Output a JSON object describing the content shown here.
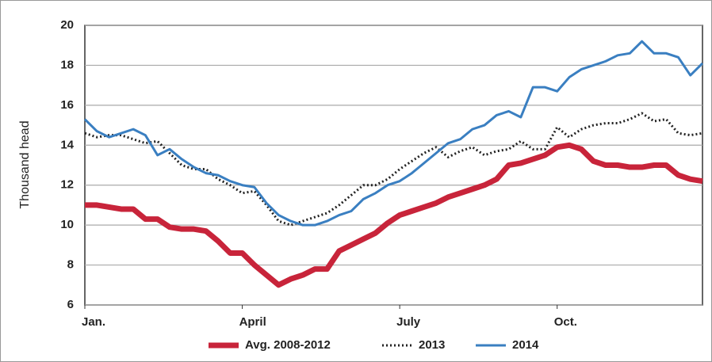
{
  "chart_data": {
    "type": "line",
    "y_label": "Thousand head",
    "x": [
      1,
      2,
      3,
      4,
      5,
      6,
      7,
      8,
      9,
      10,
      11,
      12,
      13,
      14,
      15,
      16,
      17,
      18,
      19,
      20,
      21,
      22,
      23,
      24,
      25,
      26,
      27,
      28,
      29,
      30,
      31,
      32,
      33,
      34,
      35,
      36,
      37,
      38,
      39,
      40,
      41,
      42,
      43,
      44,
      45,
      46,
      47,
      48,
      49,
      50,
      51,
      52
    ],
    "xlim": [
      1,
      52
    ],
    "xticks": [
      {
        "value": 1,
        "label": "Jan."
      },
      {
        "value": 14,
        "label": "April"
      },
      {
        "value": 27,
        "label": "July"
      },
      {
        "value": 40,
        "label": "Oct."
      }
    ],
    "ylim": [
      6,
      20
    ],
    "yticks": [
      6,
      8,
      10,
      12,
      14,
      16,
      18,
      20
    ],
    "grid": true,
    "legend": "bottom",
    "series": [
      {
        "name": "Avg. 2008-2012",
        "color": "#c8243a",
        "style": "thick",
        "values": [
          11.0,
          11.0,
          10.9,
          10.8,
          10.8,
          10.3,
          10.3,
          9.9,
          9.8,
          9.8,
          9.7,
          9.2,
          8.6,
          8.6,
          8.0,
          7.5,
          7.0,
          7.3,
          7.5,
          7.8,
          7.8,
          8.7,
          9.0,
          9.3,
          9.6,
          10.1,
          10.5,
          10.7,
          10.9,
          11.1,
          11.4,
          11.6,
          11.8,
          12.0,
          12.3,
          13.0,
          13.1,
          13.3,
          13.5,
          13.9,
          14.0,
          13.8,
          13.2,
          13.0,
          13.0,
          12.9,
          12.9,
          13.0,
          13.0,
          12.5,
          12.3,
          12.2
        ]
      },
      {
        "name": "2013",
        "color": "#222222",
        "style": "dotted",
        "values": [
          14.6,
          14.4,
          14.5,
          14.5,
          14.3,
          14.1,
          14.2,
          13.6,
          13.0,
          12.8,
          12.8,
          12.3,
          12.0,
          11.6,
          11.7,
          11.0,
          10.2,
          10.0,
          10.2,
          10.4,
          10.6,
          11.0,
          11.5,
          12.0,
          12.0,
          12.3,
          12.8,
          13.2,
          13.6,
          13.9,
          13.4,
          13.7,
          13.9,
          13.5,
          13.7,
          13.8,
          14.2,
          13.8,
          13.8,
          14.9,
          14.4,
          14.8,
          15.0,
          15.1,
          15.1,
          15.3,
          15.6,
          15.2,
          15.3,
          14.6,
          14.5,
          14.6
        ]
      },
      {
        "name": "2014",
        "color": "#3a7fc1",
        "style": "solid",
        "values": [
          15.3,
          14.7,
          14.4,
          14.6,
          14.8,
          14.5,
          13.5,
          13.8,
          13.3,
          12.9,
          12.6,
          12.5,
          12.2,
          12.0,
          11.9,
          11.1,
          10.5,
          10.2,
          10.0,
          10.0,
          10.2,
          10.5,
          10.7,
          11.3,
          11.6,
          12.0,
          12.2,
          12.6,
          13.1,
          13.6,
          14.1,
          14.3,
          14.8,
          15.0,
          15.5,
          15.7,
          15.4,
          16.9,
          16.9,
          16.7,
          17.4,
          17.8,
          18.0,
          18.2,
          18.5,
          18.6,
          19.2,
          18.6,
          18.6,
          18.4,
          17.5,
          18.1
        ]
      }
    ]
  }
}
